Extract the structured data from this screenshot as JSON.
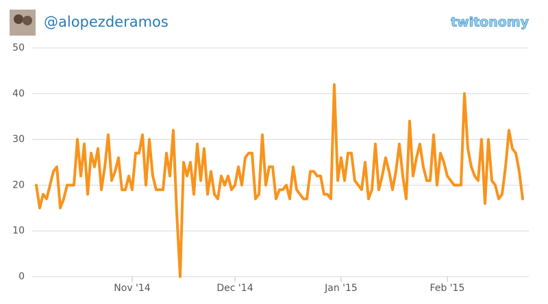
{
  "header": {
    "handle": "@alopezderamos",
    "logo": "twitonomy"
  },
  "chart_data": {
    "type": "line",
    "categories": [
      null,
      null,
      null,
      null,
      null,
      null,
      null,
      null,
      null,
      null,
      null,
      null,
      null,
      null,
      null,
      null,
      null,
      null,
      null,
      null,
      null,
      null,
      null,
      null,
      null,
      null,
      null,
      null,
      "Nov '14",
      null,
      null,
      null,
      null,
      null,
      null,
      null,
      null,
      null,
      null,
      null,
      null,
      null,
      null,
      null,
      null,
      null,
      null,
      null,
      null,
      null,
      null,
      null,
      null,
      null,
      null,
      null,
      null,
      null,
      "Dec '14",
      null,
      null,
      null,
      null,
      null,
      null,
      null,
      null,
      null,
      null,
      null,
      null,
      null,
      null,
      null,
      null,
      null,
      null,
      null,
      null,
      null,
      null,
      null,
      null,
      null,
      null,
      null,
      null,
      null,
      null,
      "Jan '15",
      null,
      null,
      null,
      null,
      null,
      null,
      null,
      null,
      null,
      null,
      null,
      null,
      null,
      null,
      null,
      null,
      null,
      null,
      null,
      null,
      null,
      null,
      null,
      null,
      null,
      null,
      null,
      null,
      null,
      null,
      "Feb '15",
      null,
      null,
      null,
      null,
      null,
      null,
      null,
      null,
      null,
      null,
      null,
      null,
      null,
      null,
      null,
      null,
      null,
      null,
      null,
      null,
      null,
      null
    ],
    "series": [
      {
        "color": "#f7941d",
        "values": [
          20,
          15,
          18,
          17,
          20,
          23,
          24,
          15,
          17,
          20,
          20,
          20,
          30,
          22,
          29,
          18,
          27,
          24,
          28,
          19,
          24,
          31,
          21,
          23,
          26,
          19,
          19,
          22,
          19,
          27,
          27,
          31,
          20,
          30,
          22,
          19,
          19,
          19,
          27,
          22,
          32,
          14,
          0,
          25,
          22,
          25,
          18,
          29,
          21,
          28,
          18,
          23,
          18,
          17,
          22,
          20,
          22,
          19,
          20,
          24,
          20,
          26,
          27,
          27,
          17,
          18,
          31,
          20,
          24,
          24,
          17,
          19,
          19,
          20,
          17,
          24,
          19,
          18,
          17,
          17,
          23,
          23,
          22,
          22,
          18,
          18,
          17,
          42,
          21,
          26,
          21,
          27,
          27,
          21,
          20,
          19,
          25,
          17,
          19,
          29,
          19,
          22,
          26,
          23,
          19,
          23,
          29,
          22,
          17,
          34,
          22,
          26,
          29,
          24,
          21,
          21,
          31,
          20,
          27,
          25,
          22,
          21,
          20,
          20,
          20,
          40,
          28,
          24,
          22,
          21,
          30,
          16,
          30,
          21,
          20,
          17,
          18,
          24,
          32,
          28,
          27,
          23,
          17
        ]
      }
    ],
    "ylim": [
      0,
      50
    ],
    "yticks": [
      0,
      10,
      20,
      30,
      40,
      50
    ],
    "grid": true
  }
}
